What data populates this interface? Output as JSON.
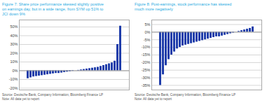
{
  "chart_data": [
    {
      "type": "bar",
      "title": "Figure 7: Share price performance skewed slightly positive\non earnings day, but in a wide range, from SYM up 51% to\nJCI down 9%",
      "annotations": [
        "Source: Deutsche Bank, Company Information, Bloomberg Finance LP\nNote: All data yet to report"
      ],
      "categories": [
        null,
        null,
        null,
        null,
        null,
        null,
        null,
        null,
        null,
        null,
        null,
        null,
        null,
        null,
        null,
        null,
        null,
        null,
        null,
        null,
        null,
        null,
        null,
        null,
        null,
        null,
        null,
        null,
        null,
        null,
        null,
        null,
        null,
        null
      ],
      "values": [
        -9,
        -8,
        -7,
        -6.5,
        -6,
        -5.5,
        -5,
        -4.5,
        -4,
        -3.5,
        -3,
        -3,
        -2.5,
        -2,
        -1.5,
        -1,
        -0.5,
        0,
        0.5,
        1,
        1.5,
        2,
        2.5,
        3,
        3.5,
        4,
        5,
        6,
        7,
        8,
        9,
        11,
        30,
        51
      ],
      "color": "#1f3daa",
      "ylim": [
        -22,
        58
      ],
      "yticks": [
        {
          "value": -20,
          "label": "-20%"
        },
        {
          "value": -10,
          "label": "-10%"
        },
        {
          "value": 0,
          "label": "0%"
        },
        {
          "value": 10,
          "label": "10%"
        },
        {
          "value": 20,
          "label": "20%"
        },
        {
          "value": 30,
          "label": "30%"
        },
        {
          "value": 40,
          "label": "40%"
        },
        {
          "value": 50,
          "label": "50%"
        }
      ],
      "grid": true,
      "tick_labels": "y"
    },
    {
      "type": "bar",
      "title": "Figure 8: Post-earnings, stock performance has skewed\nmuch more negatively",
      "annotations": [
        "Source: Deutsche Bank, Company Information, Bloomberg Finance LP\nNote: All data yet to report"
      ],
      "categories": [
        null,
        null,
        null,
        null,
        null,
        null,
        null,
        null,
        null,
        null,
        null,
        null,
        null,
        null,
        null,
        null,
        null,
        null,
        null,
        null,
        null,
        null,
        null,
        null,
        null,
        null,
        null,
        null,
        null,
        null,
        null,
        null,
        null,
        null
      ],
      "values": [
        -35,
        -28,
        -22,
        -18,
        -15,
        -13,
        -11,
        -10,
        -9,
        -8.5,
        -8,
        -7.5,
        -7,
        -6.5,
        -6,
        -5.5,
        -5,
        -4.5,
        -4,
        -3.5,
        -3,
        -3,
        -2.5,
        -2,
        -1.5,
        -1,
        -0.5,
        0,
        0.5,
        1,
        1.5,
        2,
        2.5,
        3.5
      ],
      "color": "#1f3daa",
      "ylim": [
        -38,
        8
      ],
      "yticks": [
        {
          "value": -35,
          "label": "-35%"
        },
        {
          "value": -30,
          "label": "-30%"
        },
        {
          "value": -25,
          "label": "-25%"
        },
        {
          "value": -20,
          "label": "-20%"
        },
        {
          "value": -15,
          "label": "-15%"
        },
        {
          "value": -10,
          "label": "-10%"
        },
        {
          "value": -5,
          "label": "-5%"
        },
        {
          "value": 0,
          "label": "0%"
        },
        {
          "value": 5,
          "label": "5%"
        }
      ],
      "grid": true,
      "tick_labels": "y"
    }
  ]
}
